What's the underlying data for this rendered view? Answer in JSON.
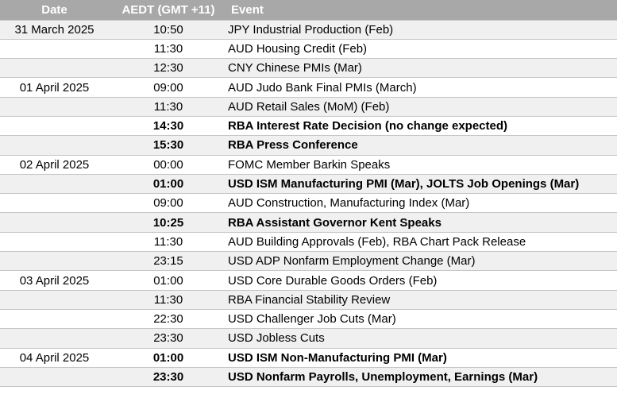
{
  "table": {
    "columns": [
      {
        "key": "date",
        "label": "Date"
      },
      {
        "key": "time",
        "label": "AEDT (GMT +11)"
      },
      {
        "key": "event",
        "label": "Event"
      }
    ],
    "rows": [
      {
        "date": "31 March 2025",
        "time": "10:50",
        "event": "JPY Industrial Production (Feb)",
        "bold": false
      },
      {
        "date": "",
        "time": "11:30",
        "event": "AUD Housing Credit (Feb)",
        "bold": false
      },
      {
        "date": "",
        "time": "12:30",
        "event": "CNY Chinese PMIs (Mar)",
        "bold": false
      },
      {
        "date": "01 April 2025",
        "time": "09:00",
        "event": "AUD Judo Bank Final PMIs (March)",
        "bold": false
      },
      {
        "date": "",
        "time": "11:30",
        "event": "AUD Retail Sales (MoM) (Feb)",
        "bold": false
      },
      {
        "date": "",
        "time": "14:30",
        "event": "RBA Interest Rate Decision (no change expected)",
        "bold": true
      },
      {
        "date": "",
        "time": "15:30",
        "event": "RBA Press Conference",
        "bold": true
      },
      {
        "date": "02 April 2025",
        "time": "00:00",
        "event": "FOMC Member Barkin Speaks",
        "bold": false
      },
      {
        "date": "",
        "time": "01:00",
        "event": "USD ISM Manufacturing PMI (Mar), JOLTS Job Openings (Mar)",
        "bold": true
      },
      {
        "date": "",
        "time": "09:00",
        "event": "AUD Construction, Manufacturing Index (Mar)",
        "bold": false
      },
      {
        "date": "",
        "time": "10:25",
        "event": "RBA Assistant Governor Kent Speaks",
        "bold": true
      },
      {
        "date": "",
        "time": "11:30",
        "event": "AUD Building Approvals (Feb), RBA Chart Pack Release",
        "bold": false
      },
      {
        "date": "",
        "time": "23:15",
        "event": "USD ADP Nonfarm Employment Change (Mar)",
        "bold": false
      },
      {
        "date": "03 April 2025",
        "time": "01:00",
        "event": "USD Core Durable Goods Orders (Feb)",
        "bold": false
      },
      {
        "date": "",
        "time": "11:30",
        "event": "RBA Financial Stability Review",
        "bold": false
      },
      {
        "date": "",
        "time": "22:30",
        "event": "USD Challenger Job Cuts (Mar)",
        "bold": false
      },
      {
        "date": "",
        "time": "23:30",
        "event": "USD Jobless Cuts",
        "bold": false
      },
      {
        "date": "04 April 2025",
        "time": "01:00",
        "event": "USD ISM Non-Manufacturing PMI (Mar)",
        "bold": true
      },
      {
        "date": "",
        "time": "23:30",
        "event": "USD Nonfarm Payrolls, Unemployment, Earnings (Mar)",
        "bold": true
      }
    ]
  },
  "colors": {
    "header_bg": "#a8a8a8",
    "header_text": "#ffffff",
    "row_bg": "#ffffff",
    "row_alt_bg": "#f0f0f0",
    "border": "#c6c6c6",
    "text": "#000000"
  }
}
